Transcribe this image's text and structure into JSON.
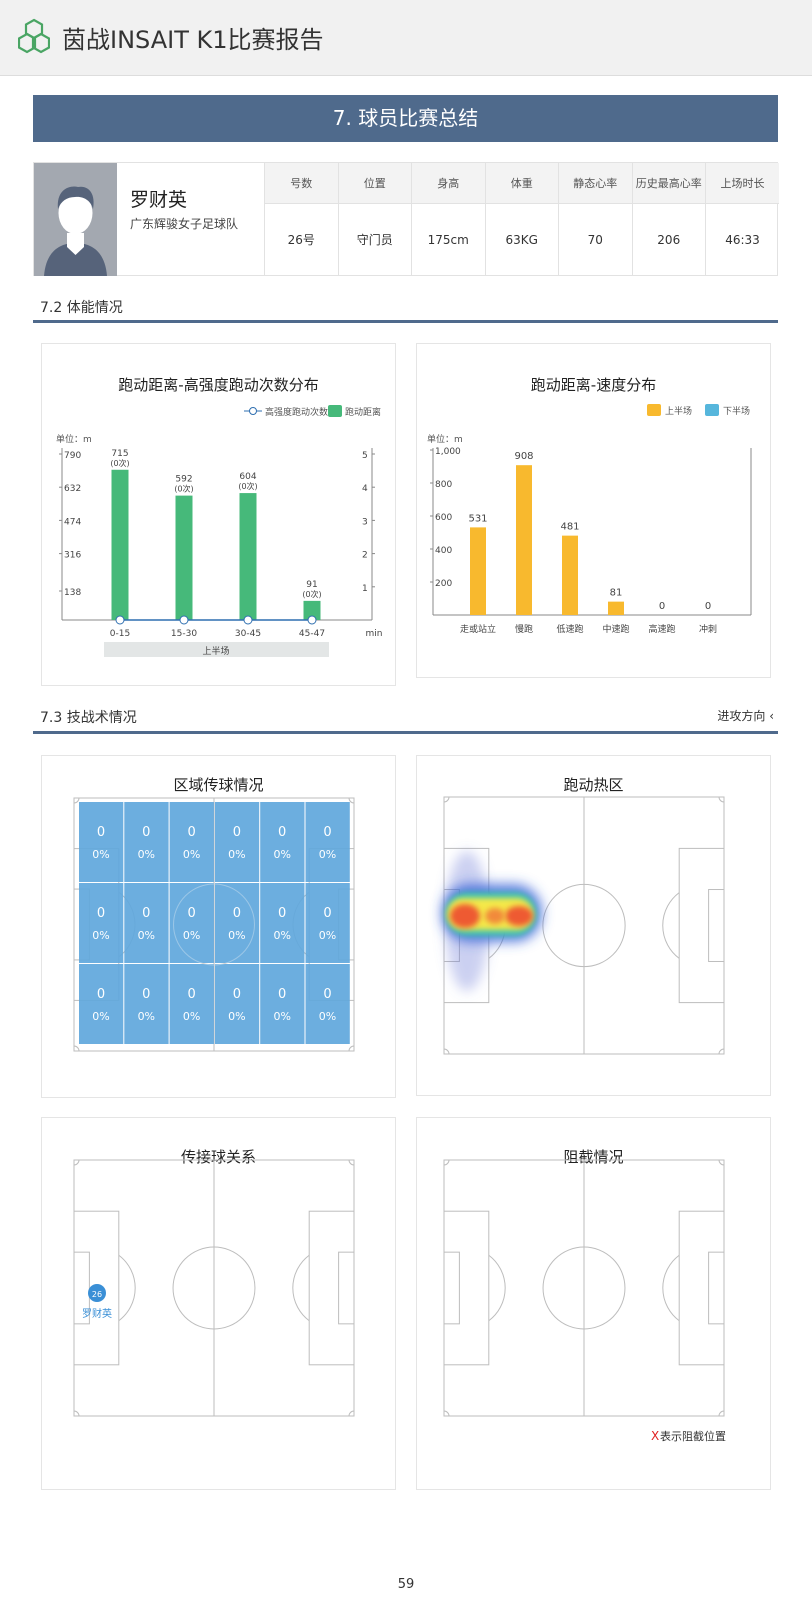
{
  "header": {
    "app_title": "茵战INSAIT K1比赛报告"
  },
  "section": {
    "title": "7. 球员比赛总结"
  },
  "player": {
    "name": "罗财英",
    "team": "广东辉骏女子足球队",
    "stat_headers": [
      "号数",
      "位置",
      "身高",
      "体重",
      "静态心率",
      "历史最高心率",
      "上场时长"
    ],
    "stat_values": [
      "26号",
      "守门员",
      "175cm",
      "63KG",
      "70",
      "206",
      "46:33"
    ]
  },
  "fitness": {
    "heading": "7.2 体能情况"
  },
  "skills": {
    "heading": "7.3 技战术情况",
    "attack_direction": "进攻方向 ‹"
  },
  "chart_data": [
    {
      "type": "bar",
      "title": "跑动距离-高强度跑动次数分布",
      "legend": [
        "高强度跑动次数",
        "跑动距离"
      ],
      "legend_position": "top-right",
      "unit_label": "单位：m",
      "categories": [
        "0-15",
        "15-30",
        "30-45",
        "45-47"
      ],
      "x_unit": "min",
      "band_label": "上半场",
      "series": [
        {
          "name": "跑动距离",
          "values": [
            715,
            592,
            604,
            91
          ],
          "color": "#46b97a"
        },
        {
          "name": "高强度跑动次数",
          "values": [
            0,
            0,
            0,
            0
          ],
          "color": "#2f6fb0"
        }
      ],
      "bar_labels": [
        "715",
        "592",
        "604",
        "91"
      ],
      "count_labels": [
        "(0次)",
        "(0次)",
        "(0次)",
        "(0次)"
      ],
      "y_ticks": [
        "790",
        "632",
        "474",
        "316",
        "138"
      ],
      "y2_ticks": [
        "5",
        "4",
        "3",
        "2",
        "1"
      ],
      "ylim": [
        0,
        790
      ],
      "y2lim": [
        0,
        5
      ]
    },
    {
      "type": "bar",
      "title": "跑动距离-速度分布",
      "legend": [
        "上半场",
        "下半场"
      ],
      "legend_colors": [
        "#f8b92e",
        "#56b6dc"
      ],
      "legend_position": "top-right",
      "unit_label": "单位：m",
      "categories": [
        "走或站立",
        "慢跑",
        "低速跑",
        "中速跑",
        "高速跑",
        "冲刺"
      ],
      "series": [
        {
          "name": "上半场",
          "values": [
            531,
            908,
            481,
            81,
            0,
            0
          ],
          "color": "#f8b92e"
        }
      ],
      "bar_labels": [
        "531",
        "908",
        "481",
        "81",
        "0",
        "0"
      ],
      "y_ticks": [
        "1,000",
        "800",
        "600",
        "400",
        "200"
      ],
      "ylim": [
        0,
        1000
      ]
    }
  ],
  "zone_pass": {
    "title": "区域传球情况",
    "cells": [
      {
        "count": "0",
        "pct": "0%"
      },
      {
        "count": "0",
        "pct": "0%"
      },
      {
        "count": "0",
        "pct": "0%"
      },
      {
        "count": "0",
        "pct": "0%"
      },
      {
        "count": "0",
        "pct": "0%"
      },
      {
        "count": "0",
        "pct": "0%"
      },
      {
        "count": "0",
        "pct": "0%"
      },
      {
        "count": "0",
        "pct": "0%"
      },
      {
        "count": "0",
        "pct": "0%"
      },
      {
        "count": "0",
        "pct": "0%"
      },
      {
        "count": "0",
        "pct": "0%"
      },
      {
        "count": "0",
        "pct": "0%"
      },
      {
        "count": "0",
        "pct": "0%"
      },
      {
        "count": "0",
        "pct": "0%"
      },
      {
        "count": "0",
        "pct": "0%"
      },
      {
        "count": "0",
        "pct": "0%"
      },
      {
        "count": "0",
        "pct": "0%"
      },
      {
        "count": "0",
        "pct": "0%"
      }
    ],
    "cell_color": "#5fa7dc"
  },
  "heatmap": {
    "title": "跑动热区"
  },
  "pass_network": {
    "title": "传接球关系",
    "node_number": "26",
    "node_name": "罗财英",
    "node_color": "#3a8fd6"
  },
  "interception": {
    "title": "阻截情况",
    "legend_mark": "X",
    "legend_text": "表示阻截位置",
    "mark_color": "#e02020"
  },
  "footer": {
    "page_number": "59"
  }
}
